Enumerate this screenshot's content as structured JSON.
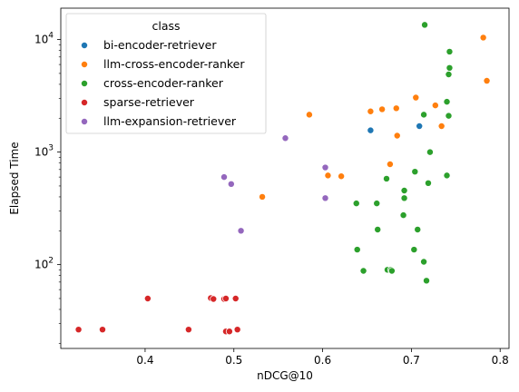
{
  "chart_data": {
    "type": "scatter",
    "xlabel": "nDCG@10",
    "ylabel": "Elapsed Time",
    "xlim": [
      0.305,
      0.81
    ],
    "ylim": [
      18,
      19000
    ],
    "yscale": "log",
    "x_ticks": [
      {
        "value": 0.4,
        "label": "0.4"
      },
      {
        "value": 0.5,
        "label": "0.5"
      },
      {
        "value": 0.6,
        "label": "0.6"
      },
      {
        "value": 0.7,
        "label": "0.7"
      },
      {
        "value": 0.8,
        "label": "0.8"
      }
    ],
    "y_ticks": [
      {
        "value": 100,
        "base": "10",
        "exp": "2"
      },
      {
        "value": 1000,
        "base": "10",
        "exp": "3"
      },
      {
        "value": 10000,
        "base": "10",
        "exp": "4"
      }
    ],
    "legend": {
      "title": "class",
      "position": "top-left"
    },
    "series": [
      {
        "name": "bi-encoder-retriever",
        "color": "#1f77b4",
        "points": [
          [
            0.654,
            1560
          ],
          [
            0.709,
            1700
          ]
        ]
      },
      {
        "name": "llm-cross-encoder-ranker",
        "color": "#ff7f0e",
        "points": [
          [
            0.532,
            400
          ],
          [
            0.585,
            2150
          ],
          [
            0.606,
            620
          ],
          [
            0.621,
            610
          ],
          [
            0.654,
            2300
          ],
          [
            0.667,
            2400
          ],
          [
            0.676,
            780
          ],
          [
            0.683,
            2450
          ],
          [
            0.684,
            1400
          ],
          [
            0.705,
            3050
          ],
          [
            0.727,
            2600
          ],
          [
            0.734,
            1700
          ],
          [
            0.781,
            10400
          ],
          [
            0.785,
            4300
          ]
        ]
      },
      {
        "name": "cross-encoder-ranker",
        "color": "#2ca02c",
        "points": [
          [
            0.638,
            350
          ],
          [
            0.639,
            136
          ],
          [
            0.646,
            88
          ],
          [
            0.661,
            350
          ],
          [
            0.662,
            205
          ],
          [
            0.672,
            580
          ],
          [
            0.673,
            90
          ],
          [
            0.677,
            90
          ],
          [
            0.678,
            88
          ],
          [
            0.691,
            275
          ],
          [
            0.692,
            390
          ],
          [
            0.692,
            455
          ],
          [
            0.703,
            136
          ],
          [
            0.704,
            670
          ],
          [
            0.707,
            205
          ],
          [
            0.714,
            106
          ],
          [
            0.714,
            2150
          ],
          [
            0.715,
            13500
          ],
          [
            0.717,
            72
          ],
          [
            0.719,
            530
          ],
          [
            0.721,
            1000
          ],
          [
            0.74,
            620
          ],
          [
            0.74,
            2800
          ],
          [
            0.742,
            2100
          ],
          [
            0.742,
            4900
          ],
          [
            0.743,
            5600
          ],
          [
            0.743,
            7800
          ]
        ]
      },
      {
        "name": "sparse-retriever",
        "color": "#d62728",
        "points": [
          [
            0.325,
            26.5
          ],
          [
            0.352,
            26.5
          ],
          [
            0.403,
            50
          ],
          [
            0.449,
            26.5
          ],
          [
            0.474,
            50.5
          ],
          [
            0.477,
            49.5
          ],
          [
            0.489,
            49.5
          ],
          [
            0.491,
            50
          ],
          [
            0.491,
            25.5
          ],
          [
            0.495,
            25.5
          ],
          [
            0.502,
            50
          ],
          [
            0.504,
            26.5
          ]
        ]
      },
      {
        "name": "llm-expansion-retriever",
        "color": "#9467bd",
        "points": [
          [
            0.489,
            600
          ],
          [
            0.497,
            520
          ],
          [
            0.508,
            200
          ],
          [
            0.558,
            1330
          ],
          [
            0.603,
            390
          ],
          [
            0.603,
            730
          ]
        ]
      }
    ]
  }
}
